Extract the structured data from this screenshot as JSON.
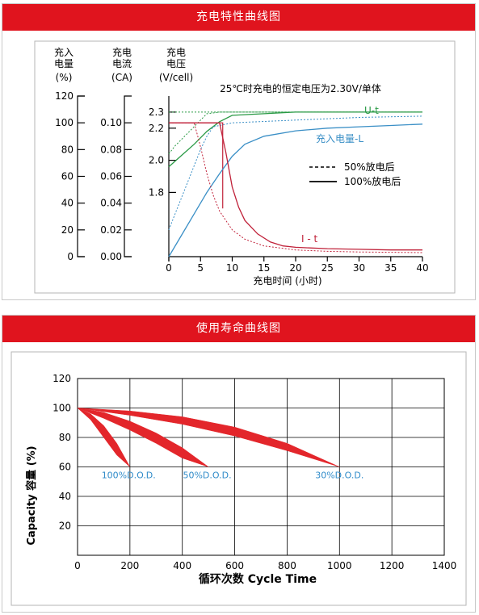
{
  "charging": {
    "banner": "充电特性曲线图",
    "axis_headers": {
      "soc": [
        "充入",
        "电量",
        "(%)"
      ],
      "current": [
        "充电",
        "电流",
        "(CA)"
      ],
      "voltage": [
        "充电",
        "电压",
        "(V/cell)"
      ]
    },
    "subtitle": "25℃时充电的恒定电压为2.30V/单体",
    "xlabel": "充电时间 (小时)",
    "legend": {
      "dashed": "50%放电后",
      "solid": "100%放电后"
    },
    "curve_labels": {
      "voltage": "U-t",
      "soc": "充入电量-L",
      "current": "I - t"
    },
    "colors": {
      "voltage": "#2a9a45",
      "soc": "#3a8fc6",
      "current": "#c0223a",
      "box": "#c0223a"
    }
  },
  "life": {
    "banner": "使用寿命曲线图",
    "colors": {
      "band": "#e3262b",
      "label": "#2f8bc9"
    }
  },
  "chart_data": [
    {
      "type": "line",
      "title": "充电特性曲线图",
      "subtitle": "25℃时充电的恒定电压为2.30V/单体",
      "xlabel": "充电时间 (小时)",
      "x_ticks": [
        0,
        5,
        10,
        15,
        20,
        25,
        30,
        35,
        40
      ],
      "xlim": [
        0,
        40
      ],
      "axes": {
        "soc": {
          "label": "充入电量 (%)",
          "ticks": [
            0,
            20,
            40,
            60,
            80,
            100,
            120
          ],
          "ylim": [
            0,
            120
          ]
        },
        "current": {
          "label": "充电电流 (CA)",
          "ticks": [
            "0.00",
            "0.02",
            "0.04",
            "0.06",
            "0.08",
            "0.10"
          ],
          "ylim": [
            0,
            0.12
          ]
        },
        "voltage": {
          "label": "充电电压 (V/cell)",
          "ticks": [
            "1.8",
            "2.0",
            "2.2",
            "2.3"
          ],
          "ylim": [
            1.4,
            2.4
          ]
        }
      },
      "grid": false,
      "legend_position": "right-center",
      "series": [
        {
          "name": "U-t",
          "axis": "voltage",
          "style": "solid",
          "x": [
            0,
            2,
            4,
            6,
            8,
            10,
            20,
            30,
            40
          ],
          "y": [
            1.96,
            2.03,
            2.1,
            2.18,
            2.24,
            2.28,
            2.3,
            2.3,
            2.3
          ]
        },
        {
          "name": "U-t",
          "axis": "voltage",
          "style": "dashed",
          "x": [
            0,
            1,
            2,
            3,
            4,
            5,
            6,
            8,
            10,
            20,
            40
          ],
          "y": [
            2.04,
            2.09,
            2.13,
            2.17,
            2.21,
            2.25,
            2.29,
            2.3,
            2.3,
            2.3,
            2.3
          ]
        },
        {
          "name": "充入电量-L",
          "axis": "soc",
          "style": "solid",
          "x": [
            0,
            2,
            4,
            6,
            8,
            10,
            12,
            15,
            20,
            25,
            30,
            35,
            40
          ],
          "y": [
            0,
            16,
            32,
            48,
            62,
            75,
            84,
            90,
            94,
            96,
            97,
            98,
            99
          ]
        },
        {
          "name": "充入电量-L",
          "axis": "soc",
          "style": "dashed",
          "x": [
            0,
            1,
            2,
            3,
            4,
            5,
            6,
            7,
            10,
            15,
            20,
            30,
            40
          ],
          "y": [
            20,
            32,
            44,
            56,
            68,
            80,
            90,
            97,
            100,
            101,
            102,
            104,
            105
          ]
        },
        {
          "name": "I - t",
          "axis": "current",
          "style": "solid",
          "x": [
            0,
            8,
            9,
            10,
            11,
            12,
            14,
            16,
            18,
            20,
            25,
            30,
            35,
            40
          ],
          "y": [
            0.1,
            0.1,
            0.078,
            0.052,
            0.037,
            0.027,
            0.017,
            0.011,
            0.008,
            0.007,
            0.006,
            0.0055,
            0.005,
            0.005
          ]
        },
        {
          "name": "I - t",
          "axis": "current",
          "style": "dashed",
          "x": [
            0,
            4,
            5,
            6,
            7,
            8,
            10,
            12,
            15,
            20,
            25,
            30,
            40
          ],
          "y": [
            0.1,
            0.1,
            0.082,
            0.062,
            0.046,
            0.034,
            0.02,
            0.013,
            0.008,
            0.005,
            0.004,
            0.0035,
            0.003
          ]
        }
      ],
      "legend": [
        "50%放电后",
        "100%放电后"
      ]
    },
    {
      "type": "area",
      "title": "使用寿命曲线图",
      "xlabel": "循环次数 Cycle Time",
      "ylabel": "Capacity 容量 (%)",
      "x_ticks": [
        0,
        200,
        400,
        600,
        800,
        1000,
        1200,
        1400
      ],
      "y_ticks": [
        20,
        40,
        60,
        80,
        100,
        120
      ],
      "xlim": [
        0,
        1400
      ],
      "ylim": [
        0,
        120
      ],
      "grid": true,
      "series": [
        {
          "name": "100%D.O.D.",
          "x": [
            0,
            50,
            100,
            150,
            200
          ],
          "upper": [
            100,
            96,
            88,
            76,
            60
          ],
          "lower": [
            100,
            92,
            80,
            68,
            60
          ],
          "tip": [
            195,
            60
          ]
        },
        {
          "name": "50%D.O.D.",
          "x": [
            0,
            100,
            200,
            300,
            400,
            500
          ],
          "upper": [
            100,
            97,
            91,
            83,
            73,
            60
          ],
          "lower": [
            100,
            93,
            85,
            76,
            66,
            60
          ],
          "tip": [
            495,
            60
          ]
        },
        {
          "name": "30%D.O.D.",
          "x": [
            0,
            200,
            400,
            600,
            800,
            1000
          ],
          "upper": [
            100,
            98,
            94,
            87,
            76,
            60
          ],
          "lower": [
            100,
            95,
            89,
            81,
            71,
            60
          ],
          "tip": [
            1000,
            60
          ]
        }
      ]
    }
  ]
}
